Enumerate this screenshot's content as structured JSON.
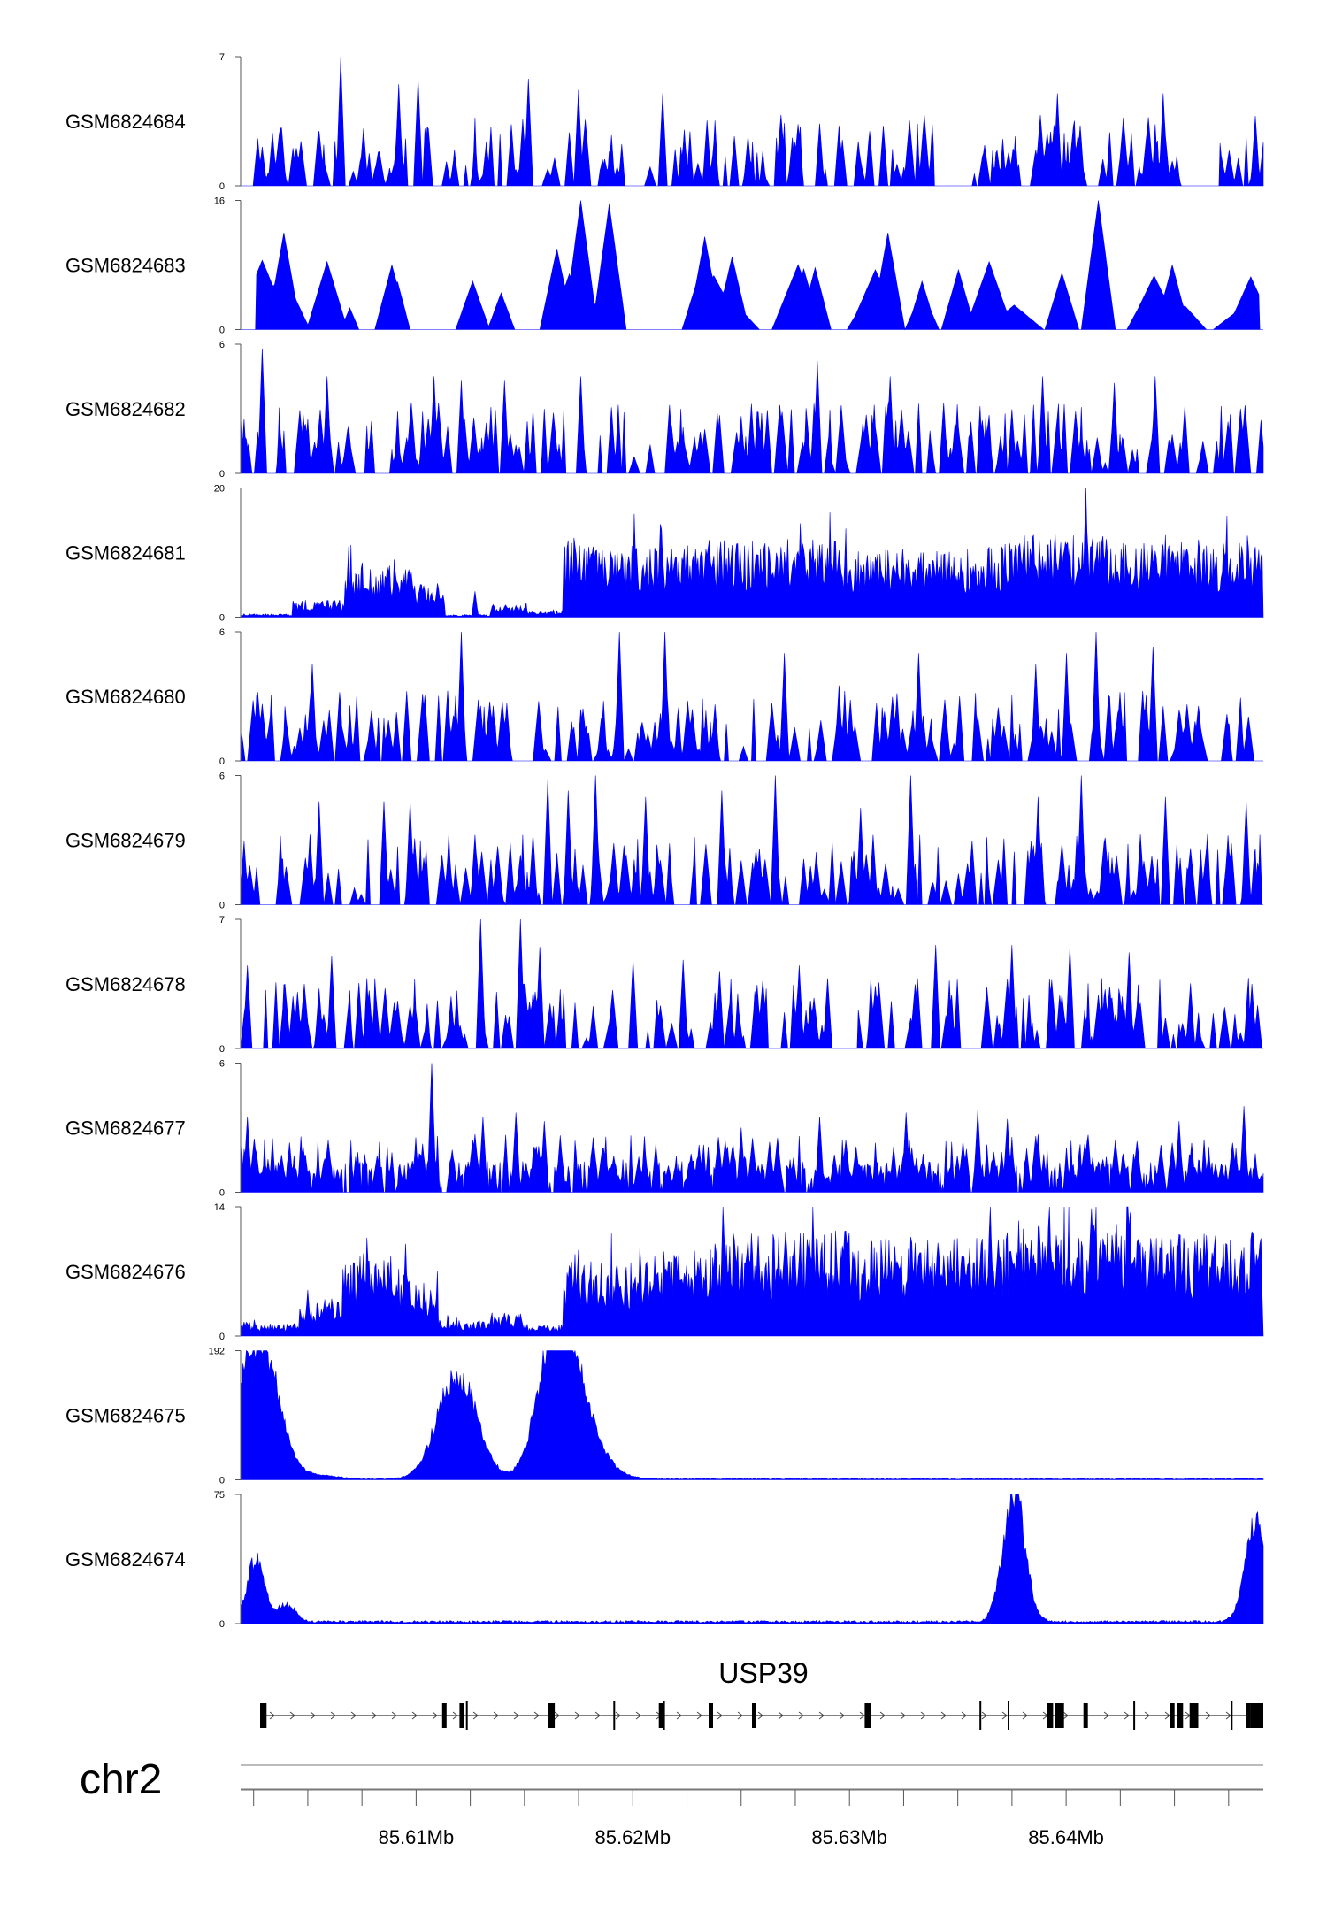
{
  "chart_data": {
    "type": "area",
    "chromosome": "chr2",
    "fill_color": "#0000FF",
    "x_range_mb": [
      85.6019,
      85.6491
    ],
    "x_ticks": [
      85.61,
      85.62,
      85.63,
      85.64
    ],
    "x_tick_labels": [
      "85.61Mb",
      "85.62Mb",
      "85.63Mb",
      "85.64Mb"
    ],
    "tracks": [
      {
        "name": "GSM6824684",
        "ymax": 7,
        "ymax_label": "7",
        "ymin_label": "0",
        "profile": "sparse",
        "gaps": [
          [
            85.6339,
            85.6357
          ],
          [
            85.6457,
            85.6471
          ]
        ],
        "peaks": [
          [
            85.6065,
            7
          ],
          [
            85.6092,
            5.5
          ],
          [
            85.6101,
            5.8
          ],
          [
            85.6152,
            5.8
          ],
          [
            85.6175,
            5.2
          ],
          [
            85.6214,
            5
          ],
          [
            85.6345,
            5
          ],
          [
            85.6396,
            5
          ],
          [
            85.6445,
            5
          ]
        ]
      },
      {
        "name": "GSM6824683",
        "ymax": 16,
        "ymax_label": "16",
        "ymin_label": "0",
        "profile": "very_sparse",
        "start_mb": 85.6026,
        "end_mb": 85.6489,
        "peaks": [
          [
            85.6039,
            12
          ],
          [
            85.6089,
            8
          ],
          [
            85.6126,
            6
          ],
          [
            85.6165,
            10
          ],
          [
            85.6176,
            16
          ],
          [
            85.6189,
            15.5
          ],
          [
            85.6233,
            11.5
          ],
          [
            85.6246,
            9
          ],
          [
            85.6279,
            7.5
          ],
          [
            85.6318,
            12
          ],
          [
            85.6398,
            7
          ],
          [
            85.6415,
            16
          ],
          [
            85.6449,
            8
          ]
        ]
      },
      {
        "name": "GSM6824682",
        "ymax": 6,
        "ymax_label": "6",
        "ymin_label": "0",
        "profile": "sparse",
        "peaks": [
          [
            85.6029,
            5.8
          ],
          [
            85.6059,
            4.5
          ],
          [
            85.6108,
            4.5
          ],
          [
            85.6121,
            4.3
          ],
          [
            85.6141,
            4.3
          ],
          [
            85.6176,
            4.5
          ],
          [
            85.624,
            2.7
          ],
          [
            85.6285,
            5.2
          ],
          [
            85.6319,
            4.5
          ],
          [
            85.6356,
            2.4
          ],
          [
            85.6389,
            4.5
          ],
          [
            85.6422,
            4.2
          ],
          [
            85.6441,
            4.5
          ]
        ]
      },
      {
        "name": "GSM6824681",
        "ymax": 20,
        "ymax_label": "20",
        "ymin_label": "0",
        "profile": "dense_regions",
        "regions": [
          [
            85.6019,
            85.6043,
            0.4
          ],
          [
            85.6043,
            85.6067,
            2.0
          ],
          [
            85.6067,
            85.6098,
            6.0
          ],
          [
            85.6098,
            85.6113,
            4.0
          ],
          [
            85.6113,
            85.6134,
            0.3
          ],
          [
            85.6134,
            85.6151,
            1.5
          ],
          [
            85.6151,
            85.6168,
            0.7
          ],
          [
            85.6168,
            85.6235,
            8.5
          ],
          [
            85.6235,
            85.63,
            9.0
          ],
          [
            85.63,
            85.637,
            8.0
          ],
          [
            85.637,
            85.642,
            9.5
          ],
          [
            85.642,
            85.6491,
            8.5
          ]
        ],
        "peaks": [
          [
            85.6127,
            4
          ],
          [
            85.6283,
            12
          ],
          [
            85.6372,
            10
          ],
          [
            85.6395,
            13
          ],
          [
            85.6409,
            20
          ],
          [
            85.6461,
            12
          ],
          [
            85.6489,
            9
          ]
        ]
      },
      {
        "name": "GSM6824680",
        "ymax": 6,
        "ymax_label": "6",
        "ymin_label": "0",
        "profile": "sparse",
        "peaks": [
          [
            85.6052,
            4.5
          ],
          [
            85.6121,
            6
          ],
          [
            85.6194,
            6
          ],
          [
            85.6215,
            6
          ],
          [
            85.627,
            5
          ],
          [
            85.6295,
            3.5
          ],
          [
            85.6332,
            5
          ],
          [
            85.6351,
            3
          ],
          [
            85.6386,
            4.5
          ],
          [
            85.64,
            5
          ],
          [
            85.6414,
            6
          ],
          [
            85.644,
            5.3
          ]
        ]
      },
      {
        "name": "GSM6824679",
        "ymax": 6,
        "ymax_label": "6",
        "ymin_label": "0",
        "profile": "sparse",
        "peaks": [
          [
            85.6055,
            4.8
          ],
          [
            85.6085,
            4.8
          ],
          [
            85.6097,
            4.8
          ],
          [
            85.6161,
            5.8
          ],
          [
            85.617,
            5.3
          ],
          [
            85.6183,
            6
          ],
          [
            85.6206,
            5
          ],
          [
            85.6241,
            5.3
          ],
          [
            85.6266,
            6
          ],
          [
            85.6305,
            4.5
          ],
          [
            85.6328,
            6
          ],
          [
            85.6387,
            5
          ],
          [
            85.6407,
            6
          ],
          [
            85.6446,
            5
          ],
          [
            85.6483,
            4.8
          ]
        ]
      },
      {
        "name": "GSM6824678",
        "ymax": 7,
        "ymax_label": "7",
        "ymin_label": "0",
        "profile": "sparse",
        "gaps": [
          [
            85.6292,
            85.6304
          ]
        ],
        "peaks": [
          [
            85.6022,
            4.5
          ],
          [
            85.6061,
            5
          ],
          [
            85.613,
            7
          ],
          [
            85.6148,
            7
          ],
          [
            85.6157,
            5.5
          ],
          [
            85.62,
            4.8
          ],
          [
            85.6223,
            4.8
          ],
          [
            85.624,
            4.2
          ],
          [
            85.6277,
            4.5
          ],
          [
            85.634,
            5.6
          ],
          [
            85.6375,
            5.6
          ],
          [
            85.6402,
            5.5
          ],
          [
            85.6429,
            5.2
          ],
          [
            85.6486,
            3.5
          ]
        ]
      },
      {
        "name": "GSM6824677",
        "ymax": 6,
        "ymax_label": "6",
        "ymin_label": "0",
        "profile": "medium",
        "peaks": [
          [
            85.6022,
            3.5
          ],
          [
            85.6107,
            6
          ],
          [
            85.6131,
            3.5
          ],
          [
            85.6146,
            3.7
          ],
          [
            85.6159,
            3.3
          ],
          [
            85.625,
            3
          ],
          [
            85.6286,
            3.5
          ],
          [
            85.6326,
            3.7
          ],
          [
            85.6359,
            3.8
          ],
          [
            85.6373,
            3.4
          ],
          [
            85.6452,
            3.3
          ],
          [
            85.6482,
            4
          ]
        ]
      },
      {
        "name": "GSM6824676",
        "ymax": 14,
        "ymax_label": "14",
        "ymin_label": "0",
        "profile": "dense_regions",
        "regions": [
          [
            85.6019,
            85.6046,
            1.0
          ],
          [
            85.6046,
            85.6066,
            3.0
          ],
          [
            85.6066,
            85.6089,
            6.5
          ],
          [
            85.6089,
            85.611,
            4.5
          ],
          [
            85.611,
            85.6133,
            1.3
          ],
          [
            85.6133,
            85.6149,
            2.0
          ],
          [
            85.6149,
            85.6168,
            1.0
          ],
          [
            85.6168,
            85.6205,
            6.0
          ],
          [
            85.6205,
            85.624,
            7.0
          ],
          [
            85.624,
            85.63,
            8.5
          ],
          [
            85.63,
            85.637,
            8.0
          ],
          [
            85.637,
            85.643,
            9.0
          ],
          [
            85.643,
            85.6491,
            8.5
          ]
        ],
        "peaks": [
          [
            85.605,
            5
          ],
          [
            85.6095,
            10
          ],
          [
            85.6238,
            10
          ],
          [
            85.6285,
            10
          ],
          [
            85.6365,
            14
          ],
          [
            85.6378,
            12.5
          ],
          [
            85.6412,
            11
          ],
          [
            85.6452,
            11
          ],
          [
            85.6486,
            10
          ]
        ]
      },
      {
        "name": "GSM6824675",
        "ymax": 192,
        "ymax_label": "192",
        "ymin_label": "0",
        "profile": "chip_peaks",
        "baseline": 2,
        "peaks": [
          [
            85.602,
            115,
            0.0007
          ],
          [
            85.6031,
            155,
            0.0007
          ],
          [
            85.6046,
            8,
            0.0012
          ],
          [
            85.6119,
            155,
            0.0009
          ],
          [
            85.6164,
            190,
            0.0008
          ],
          [
            85.6174,
            95,
            0.0009
          ],
          [
            85.6185,
            8,
            0.001
          ]
        ]
      },
      {
        "name": "GSM6824674",
        "ymax": 75,
        "ymax_label": "75",
        "ymin_label": "0",
        "profile": "chip_peaks",
        "baseline": 1.5,
        "peaks": [
          [
            85.6026,
            36,
            0.0004
          ],
          [
            85.604,
            10,
            0.0004
          ],
          [
            85.6376,
            75,
            0.0005
          ],
          [
            85.6488,
            60,
            0.0005
          ]
        ]
      }
    ],
    "gene": {
      "name": "USP39",
      "start_mb": 85.6028,
      "end_mb": 85.6491,
      "strand": "+",
      "exons": [
        {
          "start": 85.6028,
          "end": 85.6031,
          "thick": true
        },
        {
          "start": 85.6112,
          "end": 85.6114,
          "thick": true
        },
        {
          "start": 85.612,
          "end": 85.6122,
          "thick": true
        },
        {
          "start": 85.6123,
          "end": 85.61235,
          "thick": false
        },
        {
          "start": 85.6161,
          "end": 85.6164,
          "thick": true
        },
        {
          "start": 85.6191,
          "end": 85.61915,
          "thick": false
        },
        {
          "start": 85.6212,
          "end": 85.6213,
          "thick": true
        },
        {
          "start": 85.6214,
          "end": 85.62145,
          "thick": false
        },
        {
          "start": 85.6235,
          "end": 85.6237,
          "thick": true
        },
        {
          "start": 85.6255,
          "end": 85.6257,
          "thick": true
        },
        {
          "start": 85.6307,
          "end": 85.631,
          "thick": true
        },
        {
          "start": 85.636,
          "end": 85.63605,
          "thick": false
        },
        {
          "start": 85.6373,
          "end": 85.63735,
          "thick": false
        },
        {
          "start": 85.6391,
          "end": 85.6394,
          "thick": true
        },
        {
          "start": 85.6395,
          "end": 85.6399,
          "thick": true
        },
        {
          "start": 85.6408,
          "end": 85.6409,
          "thick": true
        },
        {
          "start": 85.6431,
          "end": 85.64315,
          "thick": false
        },
        {
          "start": 85.6448,
          "end": 85.645,
          "thick": true
        },
        {
          "start": 85.6451,
          "end": 85.6454,
          "thick": true
        },
        {
          "start": 85.6457,
          "end": 85.6461,
          "thick": true
        },
        {
          "start": 85.6476,
          "end": 85.64765,
          "thick": false
        },
        {
          "start": 85.6483,
          "end": 85.6484,
          "thick": true
        },
        {
          "start": 85.6485,
          "end": 85.6491,
          "thick": true
        }
      ]
    }
  }
}
